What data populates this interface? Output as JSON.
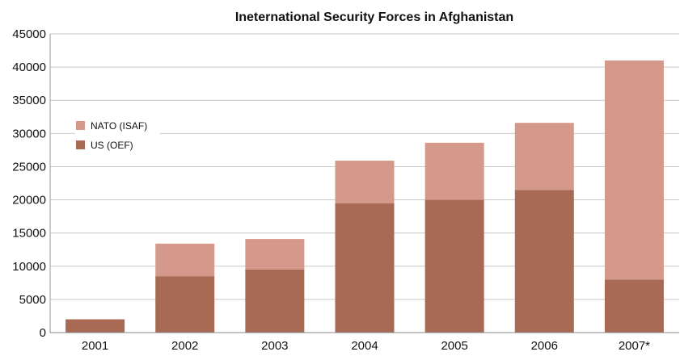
{
  "chart_data": {
    "type": "bar",
    "stacked": true,
    "title": "Ineternational Security Forces in Afghanistan",
    "xlabel": "",
    "ylabel": "",
    "categories": [
      "2001",
      "2002",
      "2003",
      "2004",
      "2005",
      "2006",
      "2007*"
    ],
    "series": [
      {
        "name": "US (OEF)",
        "color": "#a86a55",
        "values": [
          2000,
          8500,
          9500,
          19500,
          20000,
          21500,
          8000
        ]
      },
      {
        "name": "NATO (ISAF)",
        "color": "#d4998a",
        "values": [
          0,
          4900,
          4600,
          6400,
          8600,
          10100,
          33000
        ]
      }
    ],
    "ylim": [
      0,
      45000
    ],
    "yticks": [
      0,
      5000,
      10000,
      15000,
      20000,
      25000,
      30000,
      35000,
      40000,
      45000
    ],
    "grid": true,
    "legend": "upper-left"
  }
}
